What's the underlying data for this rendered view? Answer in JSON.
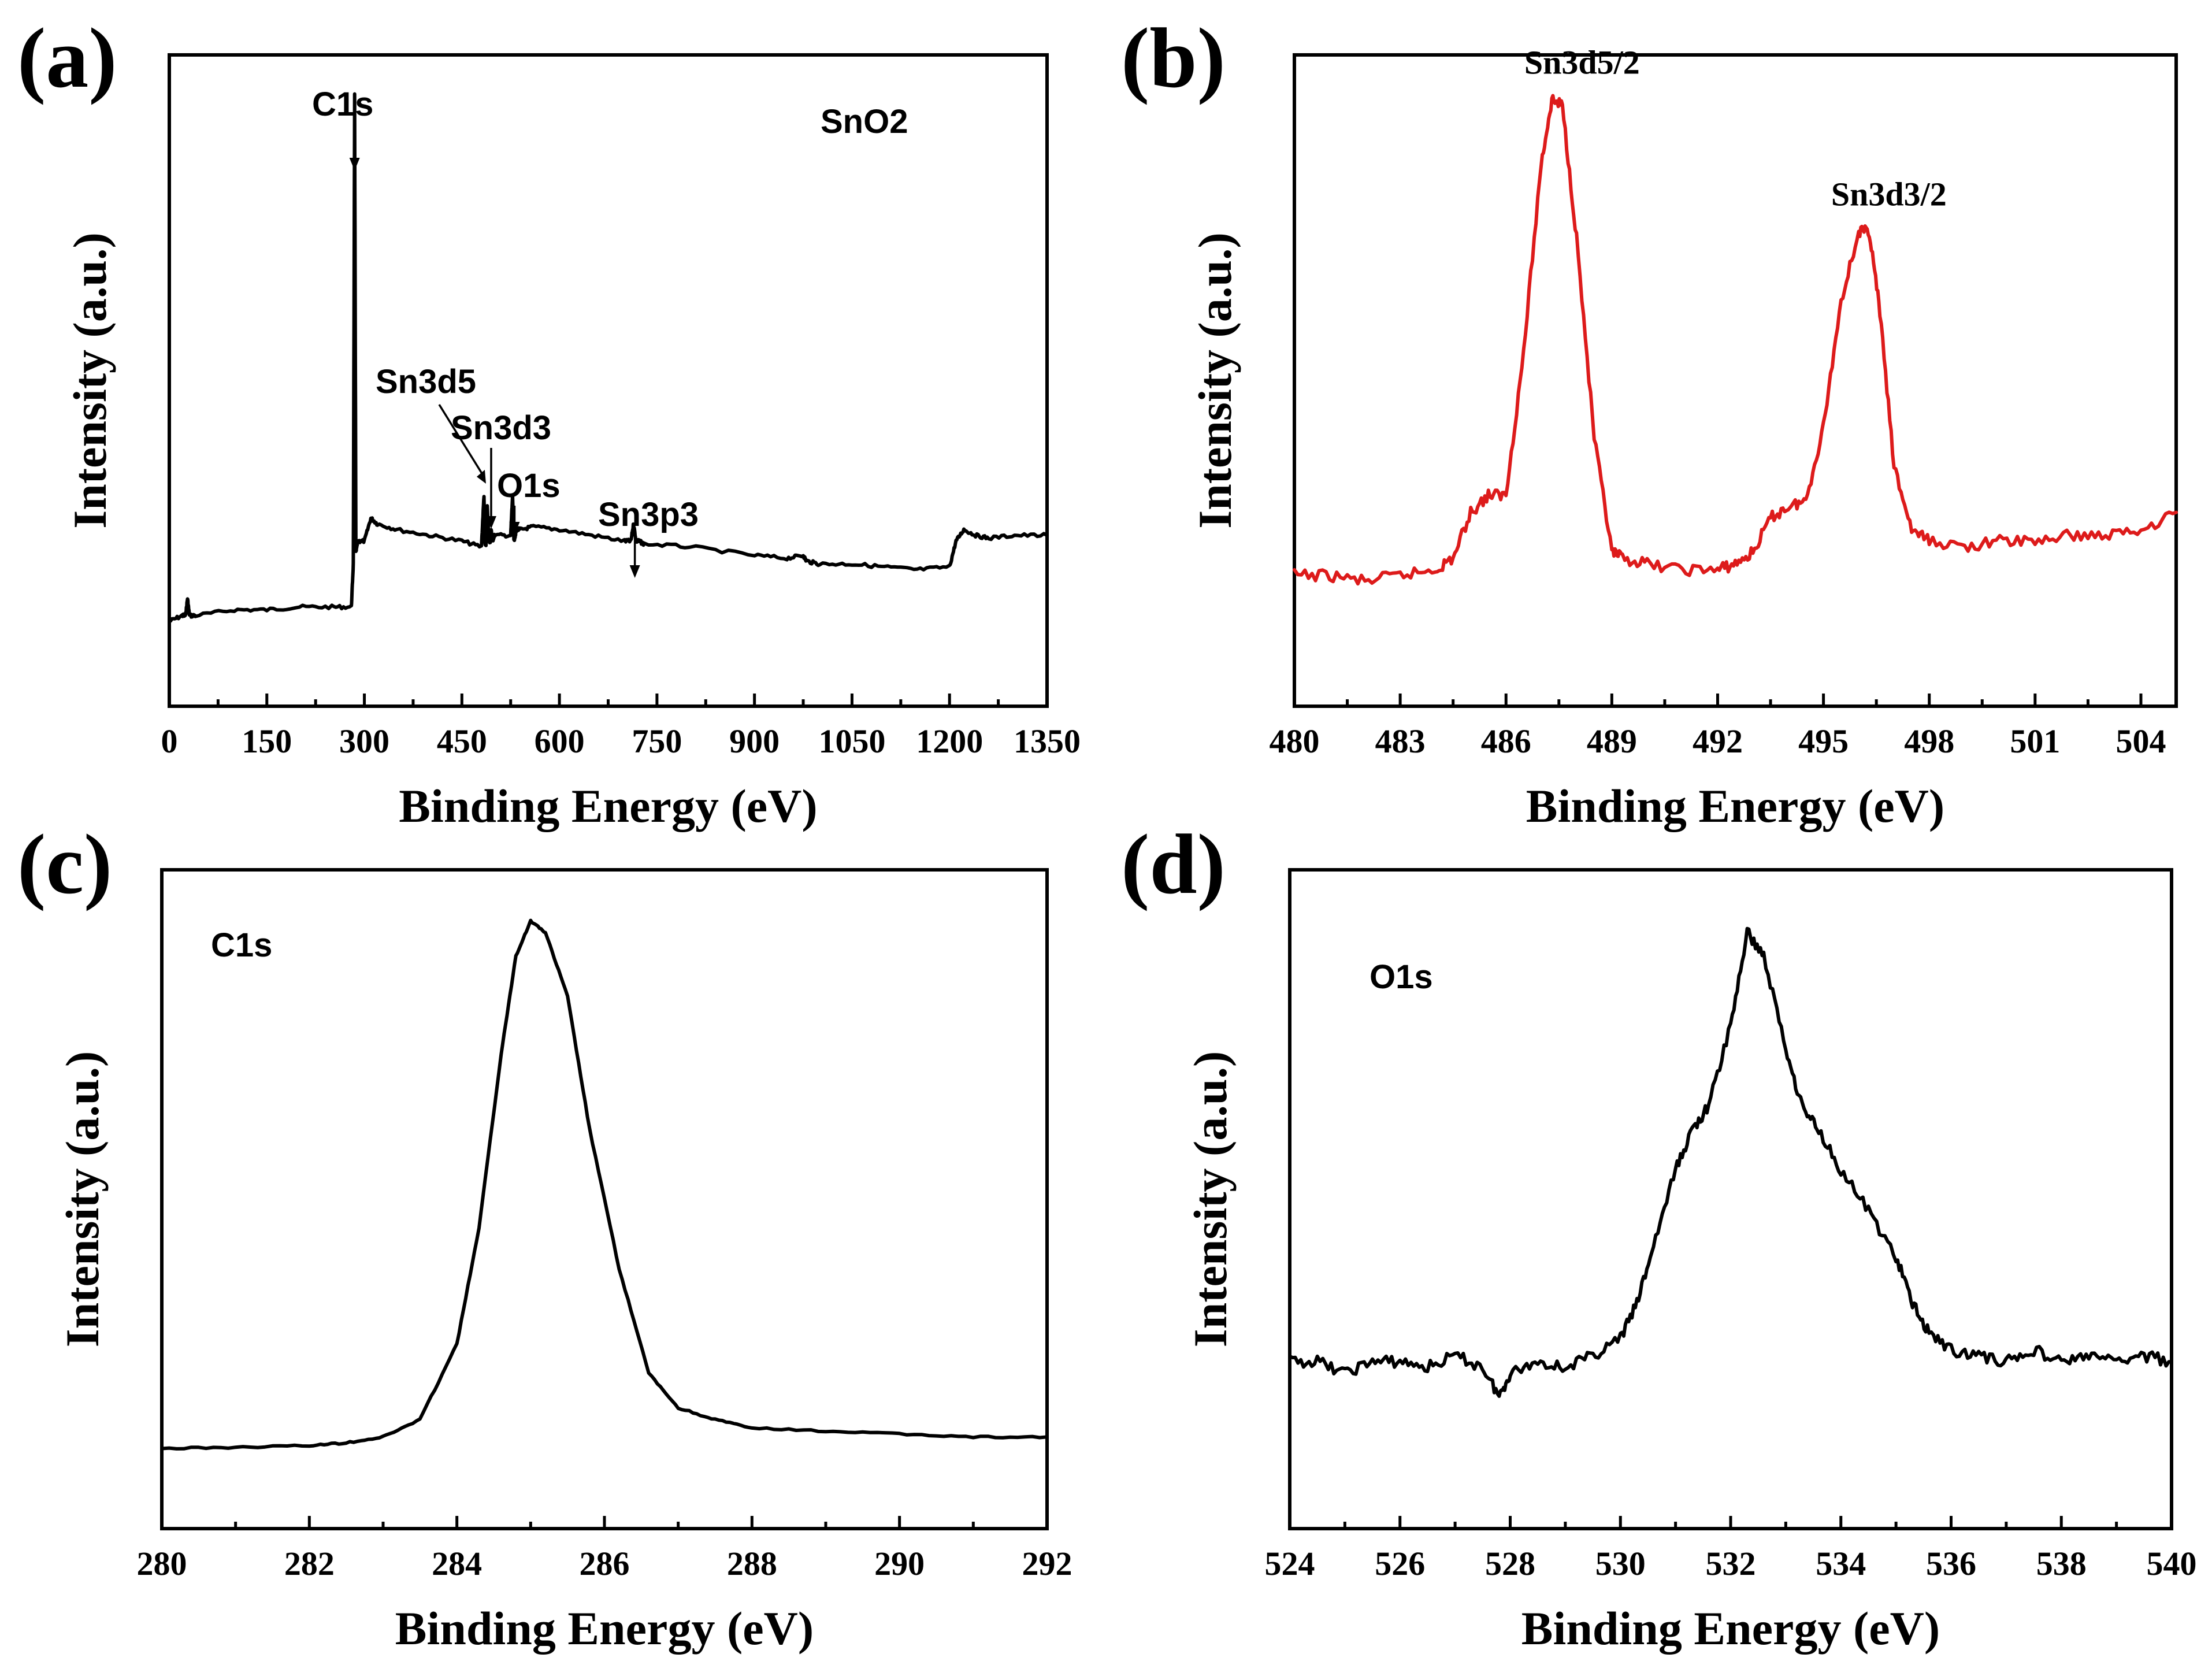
{
  "chart_data": [
    {
      "type": "line",
      "panel_label": "(a)",
      "title": "",
      "legend_text": "SnO2",
      "xlabel": "Binding Energy (eV)",
      "ylabel": "Intensity (a.u.)",
      "xlim": [
        0,
        1350
      ],
      "ylim": [
        0,
        100
      ],
      "xticks": [
        0,
        150,
        300,
        450,
        600,
        750,
        900,
        1050,
        1200,
        1350
      ],
      "color": "#000000",
      "series": [
        {
          "name": "SnO2 survey",
          "x": [
            0,
            20,
            25,
            28,
            31,
            40,
            100,
            150,
            200,
            250,
            280,
            283,
            285,
            287,
            290,
            300,
            310,
            320,
            350,
            400,
            450,
            480,
            484,
            485,
            487,
            489,
            492,
            494,
            495,
            497,
            500,
            525,
            528,
            530,
            532,
            534,
            540,
            560,
            600,
            650,
            700,
            710,
            714,
            718,
            722,
            730,
            800,
            900,
            950,
            975,
            980,
            1000,
            1050,
            1100,
            1150,
            1200,
            1210,
            1222,
            1240,
            1260,
            1300,
            1350
          ],
          "y": [
            8,
            9,
            9,
            12,
            9,
            9,
            10,
            10,
            10.5,
            10.5,
            10.5,
            18,
            100,
            20,
            22,
            22,
            26,
            25,
            24,
            23,
            22,
            21,
            30,
            22,
            21,
            28,
            22,
            22,
            24,
            22,
            23,
            23,
            30,
            22,
            23,
            24,
            24,
            24.5,
            24,
            23,
            22,
            22,
            25,
            22,
            22,
            21.5,
            21,
            19.5,
            19,
            19.5,
            18.5,
            18,
            18,
            17.5,
            17,
            17.5,
            22,
            24,
            23,
            22.5,
            23,
            23
          ]
        }
      ],
      "annotations": [
        {
          "text": "C1s",
          "x": 285,
          "y": 100
        },
        {
          "text": "Sn3d5",
          "x": 487,
          "y": 30
        },
        {
          "text": "Sn3d3",
          "x": 495,
          "y": 28
        },
        {
          "text": "O1s",
          "x": 531,
          "y": 30
        },
        {
          "text": "Sn3p3",
          "x": 716,
          "y": 25
        }
      ]
    },
    {
      "type": "line",
      "panel_label": "(b)",
      "title": "",
      "xlabel": "Binding Energy (eV)",
      "ylabel": "Intensity (a.u.)",
      "xlim": [
        480,
        505
      ],
      "ylim": [
        0,
        100
      ],
      "xticks": [
        480,
        483,
        486,
        489,
        492,
        495,
        498,
        501,
        504
      ],
      "color": "#dd1b1b",
      "series": [
        {
          "name": "Sn3d",
          "x": [
            480,
            481,
            482,
            483,
            484,
            484.5,
            485,
            485.5,
            486,
            486.5,
            487,
            487.3,
            487.6,
            488,
            488.5,
            489,
            489.3,
            490,
            491,
            492,
            492.5,
            493,
            493.5,
            494,
            494.5,
            495,
            495.5,
            496,
            496.3,
            496.6,
            497,
            497.5,
            498,
            499,
            500,
            501,
            502,
            503,
            504,
            505
          ],
          "y": [
            16,
            16,
            15,
            16,
            17,
            19,
            27,
            30,
            30,
            55,
            88,
            99,
            98,
            75,
            40,
            20,
            19,
            18,
            17,
            17,
            18,
            20,
            26,
            28,
            29,
            42,
            64,
            76,
            76,
            62,
            35,
            24,
            22,
            21,
            22,
            22,
            23,
            23,
            24,
            27
          ]
        }
      ],
      "annotations": [
        {
          "text": "Sn3d5/2",
          "x": 487.5,
          "y": 99
        },
        {
          "text": "Sn3d3/2",
          "x": 496.2,
          "y": 76
        }
      ]
    },
    {
      "type": "line",
      "panel_label": "(c)",
      "title": "",
      "legend_text": "C1s",
      "xlabel": "Binding Energy (eV)",
      "ylabel": "Intensity (a.u.)",
      "xlim": [
        280,
        292
      ],
      "ylim": [
        0,
        100
      ],
      "xticks": [
        280,
        282,
        284,
        286,
        288,
        290,
        292
      ],
      "color": "#000000",
      "series": [
        {
          "name": "C1s",
          "x": [
            280,
            281,
            282,
            282.5,
            283,
            283.5,
            284,
            284.3,
            284.6,
            284.8,
            285,
            285.2,
            285.5,
            285.8,
            286.2,
            286.6,
            287,
            287.5,
            288,
            289,
            290,
            291,
            292
          ],
          "y": [
            7,
            7.2,
            7.5,
            8,
            9,
            12,
            25,
            45,
            75,
            92,
            98,
            96,
            85,
            62,
            38,
            20,
            14,
            12,
            10.5,
            10,
            9.5,
            9,
            9
          ]
        }
      ],
      "annotations": []
    },
    {
      "type": "line",
      "panel_label": "(d)",
      "title": "",
      "legend_text": "O1s",
      "xlabel": "Binding Energy (eV)",
      "ylabel": "Intensity (a.u.)",
      "xlim": [
        524,
        540
      ],
      "ylim": [
        0,
        100
      ],
      "xticks": [
        524,
        526,
        528,
        530,
        532,
        534,
        536,
        538,
        540
      ],
      "color": "#000000",
      "series": [
        {
          "name": "O1s",
          "x": [
            524,
            524.5,
            525,
            525.5,
            526,
            526.5,
            527,
            527.5,
            527.8,
            528,
            528.5,
            529,
            529.5,
            530,
            530.3,
            530.6,
            531,
            531.3,
            531.6,
            532,
            532.3,
            532.6,
            533,
            533.3,
            533.6,
            534,
            534.5,
            535,
            535.3,
            535.6,
            536,
            536.5,
            537,
            537.5,
            538,
            538.5,
            539,
            539.5,
            540
          ],
          "y": [
            22,
            22,
            20,
            22,
            22,
            21,
            23,
            21,
            16,
            20,
            22,
            21,
            23,
            26,
            32,
            42,
            55,
            62,
            66,
            80,
            96,
            92,
            76,
            66,
            62,
            55,
            48,
            40,
            32,
            27,
            24,
            23,
            22,
            24,
            22,
            23,
            22,
            23,
            22
          ]
        }
      ],
      "annotations": []
    }
  ]
}
